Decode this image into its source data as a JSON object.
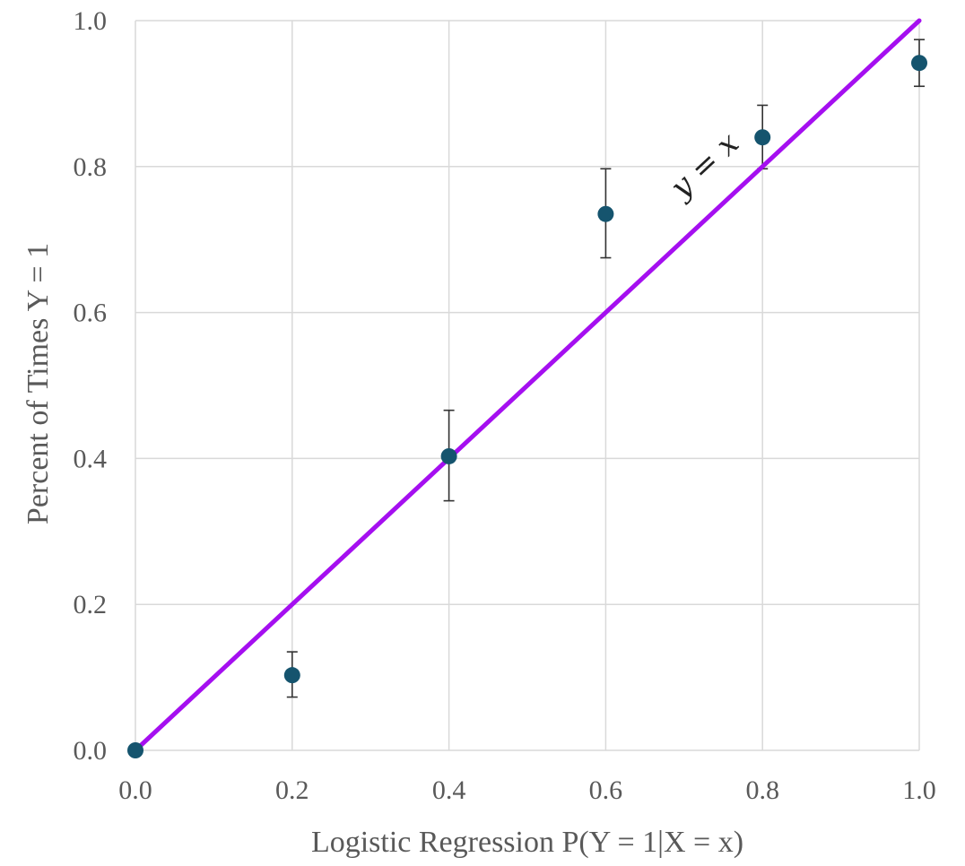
{
  "chart_data": {
    "type": "scatter",
    "title": "",
    "xlabel": "Logistic Regression P(Y = 1|X = x)",
    "ylabel": "Percent of Times Y = 1",
    "xlim": [
      0,
      1
    ],
    "ylim": [
      0,
      1
    ],
    "x_ticks": [
      "0.0",
      "0.2",
      "0.4",
      "0.6",
      "0.8",
      "1.0"
    ],
    "y_ticks": [
      "0.0",
      "0.2",
      "0.4",
      "0.6",
      "0.8",
      "1.0"
    ],
    "grid": true,
    "series": [
      {
        "x": [
          0.0,
          0.2,
          0.4,
          0.6,
          0.8,
          1.0
        ],
        "y": [
          0.0,
          0.103,
          0.403,
          0.735,
          0.84,
          0.942
        ],
        "err_low": [
          0.0,
          0.073,
          0.342,
          0.675,
          0.797,
          0.91
        ],
        "err_high": [
          0.0,
          0.135,
          0.466,
          0.797,
          0.884,
          0.974
        ],
        "color": "#15546e"
      }
    ],
    "reference_line": {
      "label": "y = x",
      "x": [
        0,
        1
      ],
      "y": [
        0,
        1
      ],
      "color": "#a50ff0"
    },
    "error_bar_color": "#333333"
  }
}
